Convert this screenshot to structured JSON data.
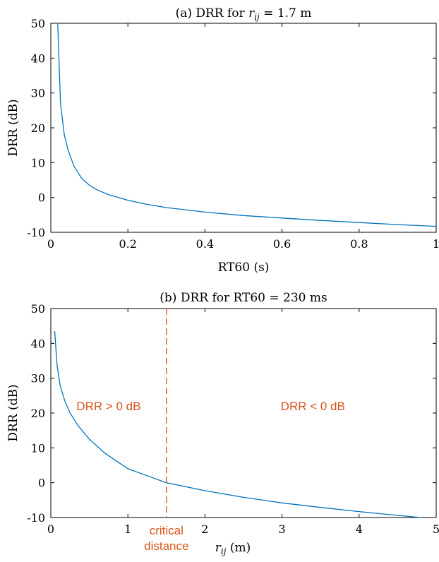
{
  "colors": {
    "curve": "#0072BD",
    "annotation": "#D95319",
    "axis": "#000000"
  },
  "chart_data": [
    {
      "id": "a",
      "type": "line",
      "title_prefix": "(a) DRR for ",
      "title_var": "r",
      "title_sub": "ij",
      "title_suffix": " = 1.7 m",
      "xlabel": "RT60 (s)",
      "ylabel": "DRR (dB)",
      "xlim": [
        0,
        1
      ],
      "ylim": [
        -10,
        50
      ],
      "xticks": [
        0,
        0.2,
        0.4,
        0.6,
        0.8,
        1
      ],
      "xtick_labels": [
        "0",
        "0.2",
        "0.4",
        "0.6",
        "0.8",
        "1"
      ],
      "yticks": [
        -10,
        0,
        10,
        20,
        30,
        40,
        50
      ],
      "ytick_labels": [
        "-10",
        "0",
        "10",
        "20",
        "30",
        "40",
        "50"
      ],
      "grid": false,
      "series": [
        {
          "x": [
            0.018,
            0.025,
            0.035,
            0.045,
            0.06,
            0.08,
            0.1,
            0.12,
            0.15,
            0.2,
            0.25,
            0.3,
            0.4,
            0.5,
            0.6,
            0.7,
            0.8,
            0.9,
            1.0
          ],
          "y": [
            50,
            27,
            18,
            13.5,
            9,
            5.5,
            3.5,
            2.2,
            0.8,
            -0.8,
            -2,
            -2.9,
            -4.2,
            -5.2,
            -5.9,
            -6.6,
            -7.2,
            -7.8,
            -8.3
          ]
        }
      ]
    },
    {
      "id": "b",
      "type": "line",
      "title": "(b) DRR for RT60 = 230 ms",
      "xlabel_var": "r",
      "xlabel_sub": "ij",
      "xlabel_suffix": " (m)",
      "ylabel": "DRR (dB)",
      "xlim": [
        0,
        5
      ],
      "ylim": [
        -10,
        50
      ],
      "xticks": [
        0,
        1,
        2,
        3,
        4,
        5
      ],
      "xtick_labels": [
        "0",
        "1",
        "2",
        "3",
        "4",
        "5"
      ],
      "yticks": [
        -10,
        0,
        10,
        20,
        30,
        40,
        50
      ],
      "ytick_labels": [
        "-10",
        "0",
        "10",
        "20",
        "30",
        "40",
        "50"
      ],
      "grid": false,
      "series": [
        {
          "x": [
            0.05,
            0.08,
            0.12,
            0.18,
            0.25,
            0.35,
            0.5,
            0.7,
            1.0,
            1.25,
            1.5,
            2.0,
            2.5,
            3.0,
            3.5,
            4.0,
            4.5,
            4.8
          ],
          "y": [
            43.5,
            34,
            28,
            23.5,
            20,
            16.5,
            12.5,
            8.5,
            4,
            2,
            0,
            -2.3,
            -4.2,
            -5.8,
            -7.1,
            -8.3,
            -9.4,
            -10
          ]
        }
      ],
      "vline": {
        "x": 1.5,
        "label_line1": "critical",
        "label_line2": "distance"
      },
      "regions": [
        {
          "label": "DRR > 0 dB",
          "x": 0.75,
          "y": 22
        },
        {
          "label": "DRR < 0 dB",
          "x": 3.4,
          "y": 22
        }
      ]
    }
  ]
}
